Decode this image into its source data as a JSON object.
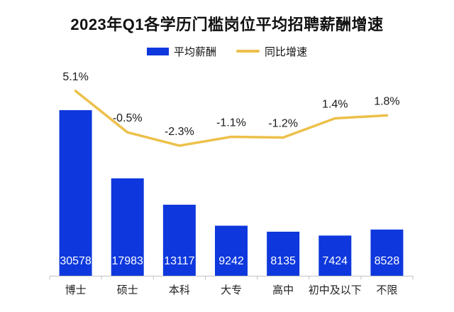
{
  "chart_data": {
    "type": "bar+line",
    "title": "2023年Q1各学历门槛岗位平均招聘薪酬增速",
    "categories": [
      "博士",
      "硕士",
      "本科",
      "大专",
      "高中",
      "初中及以下",
      "不限"
    ],
    "series": [
      {
        "name": "平均薪酬",
        "type": "bar",
        "color": "#0e38dd",
        "values": [
          30578,
          17983,
          13117,
          9242,
          8135,
          7424,
          8528
        ],
        "value_label_color": "#ffffff"
      },
      {
        "name": "同比增速",
        "type": "line",
        "color": "#ecc04a",
        "values": [
          5.1,
          -0.5,
          -2.3,
          -1.1,
          -1.2,
          1.4,
          1.8
        ],
        "labels": [
          "5.1%",
          "-0.5%",
          "-2.3%",
          "-1.1%",
          "-1.2%",
          "1.4%",
          "1.8%"
        ],
        "label_color": "#1a1a1a"
      }
    ],
    "xlabel": "",
    "ylabel": "",
    "bar_axis": {
      "min": 0,
      "max": 32000
    },
    "line_axis": {
      "min": -3,
      "max": 6
    },
    "legend_position": "top-center",
    "grid": false,
    "axis_color": "#c2c2c2",
    "x_label_color": "#222222",
    "background": "#ffffff"
  }
}
